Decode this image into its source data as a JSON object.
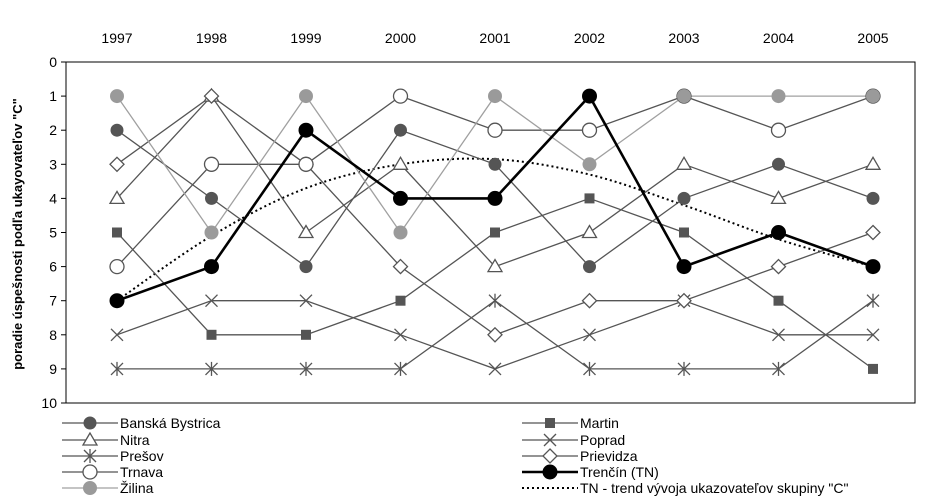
{
  "chart_data": {
    "type": "line",
    "title": "",
    "xlabel": "",
    "ylabel": "poradie úspešnosti podľa ukayovateľov \"C\"",
    "x": [
      "1997",
      "1998",
      "1999",
      "2000",
      "2001",
      "2002",
      "2003",
      "2004",
      "2005"
    ],
    "ylim": [
      0,
      10
    ],
    "y_inverted": true,
    "y_ticks": [
      "0",
      "1",
      "2",
      "3",
      "4",
      "5",
      "6",
      "7",
      "8",
      "9",
      "10"
    ],
    "grid": false,
    "legend_position": "bottom",
    "series": [
      {
        "name": "Banská Bystrica",
        "marker": "circle-filled",
        "color": "#555555",
        "values": [
          2,
          4,
          6,
          2,
          3,
          6,
          4,
          3,
          4
        ]
      },
      {
        "name": "Martin",
        "marker": "square-filled",
        "color": "#555555",
        "values": [
          5,
          8,
          8,
          7,
          5,
          4,
          5,
          7,
          9
        ]
      },
      {
        "name": "Nitra",
        "marker": "triangle-open",
        "color": "#555555",
        "values": [
          4,
          1,
          5,
          3,
          6,
          5,
          3,
          4,
          3
        ]
      },
      {
        "name": "Poprad",
        "marker": "x",
        "color": "#555555",
        "values": [
          8,
          7,
          7,
          8,
          9,
          8,
          7,
          8,
          8
        ]
      },
      {
        "name": "Prešov",
        "marker": "asterisk",
        "color": "#555555",
        "values": [
          9,
          9,
          9,
          9,
          7,
          9,
          9,
          9,
          7
        ]
      },
      {
        "name": "Prievidza",
        "marker": "diamond-open",
        "color": "#555555",
        "values": [
          3,
          1,
          3,
          6,
          8,
          7,
          7,
          6,
          5
        ]
      },
      {
        "name": "Trnava",
        "marker": "circle-open",
        "color": "#555555",
        "values": [
          6,
          3,
          3,
          1,
          2,
          2,
          1,
          2,
          1
        ]
      },
      {
        "name": "Trenčín (TN)",
        "marker": "circle-filled-bold",
        "color": "#000000",
        "values": [
          7,
          6,
          2,
          4,
          4,
          1,
          6,
          5,
          6
        ]
      },
      {
        "name": "Žilina",
        "marker": "circle-gray",
        "color": "#999999",
        "values": [
          1,
          5,
          1,
          5,
          1,
          3,
          1,
          1,
          1
        ]
      },
      {
        "name": "TN - trend vývoja ukazovateľov skupiny \"C\"",
        "marker": "none",
        "style": "dotted",
        "color": "#000000",
        "values": [
          7,
          5.1,
          3.7,
          3.0,
          2.85,
          3.3,
          4.2,
          5.2,
          6.0
        ]
      }
    ]
  }
}
